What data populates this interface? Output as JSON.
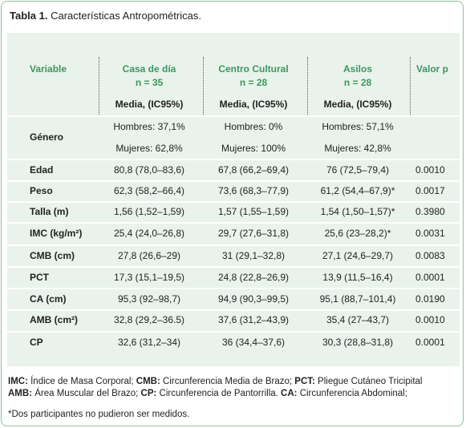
{
  "title": {
    "label": "Tabla 1.",
    "text": "Características Antropométricas."
  },
  "table": {
    "columns": [
      {
        "name": "Variable"
      },
      {
        "name": "Casa de día",
        "n": "n = 35",
        "sub": "Media, (IC95%)"
      },
      {
        "name": "Centro Cultural",
        "n": "n = 28",
        "sub": "Media, (IC95%)"
      },
      {
        "name": "Asilos",
        "n": "n = 28",
        "sub": "Media, (IC95%)"
      },
      {
        "name": "Valor p"
      }
    ],
    "rows": [
      {
        "label": "Género",
        "cells": [
          [
            "Hombres: 37,1%",
            "Mujeres: 62,8%"
          ],
          [
            "Hombres: 0%",
            "Mujeres: 100%"
          ],
          [
            "Hombres: 57,1%",
            "Mujeres: 42,8%"
          ]
        ]
      },
      {
        "label": "Edad",
        "cells": [
          "80,8 (78,0–83,6)",
          "67,8 (66,2–69,4)",
          "76 (72,5–79,4)",
          "0.0010"
        ]
      },
      {
        "label": "Peso",
        "cells": [
          "62,3 (58,2–66,4)",
          "73,6 (68,3–77,9)",
          "61,2 (54,4–67,9)*",
          "0.0017"
        ]
      },
      {
        "label": "Talla (m)",
        "cells": [
          "1,56 (1,52–1,59)",
          "1,57 (1,55–1,59)",
          "1,54 (1,50–1,57)*",
          "0.3980"
        ]
      },
      {
        "label": "IMC (kg/m²)",
        "cells": [
          "25,4 (24,0–26,8)",
          "29,7 (27,6–31,8)",
          "25,6 (23–28,2)*",
          "0.0031"
        ]
      },
      {
        "label": "CMB (cm)",
        "cells": [
          "27,8 (26,6–29)",
          "31 (29,1–32,8)",
          "27,1 (24,6–29,7)",
          "0.0083"
        ]
      },
      {
        "label": "PCT",
        "cells": [
          "17,3 (15,1–19,5)",
          "24,8 (22,8–26,9)",
          "13,9 (11,5–16,4)",
          "0.0001"
        ]
      },
      {
        "label": "CA (cm)",
        "cells": [
          "95,3 (92–98,7)",
          "94,9 (90,3–99,5)",
          "95,1 (88,7–101,4)",
          "0.0190"
        ]
      },
      {
        "label": "AMB (cm²)",
        "cells": [
          "32,8 (29,2–36.5)",
          "37,6 (31,2–43,9)",
          "35,4 (27–43,7)",
          "0.0010"
        ]
      },
      {
        "label": "CP",
        "cells": [
          "32,6 (31,2–34)",
          "36 (34,4–37,6)",
          "30,3 (28,8–31,8)",
          "0.0001"
        ]
      }
    ]
  },
  "footer": {
    "lines": [
      [
        {
          "bold": "IMC:",
          "text": " Índice de Masa Corporal; "
        },
        {
          "bold": "CMB:",
          "text": " Circunferencia Media de Brazo; "
        },
        {
          "bold": "PCT:",
          "text": " Pliegue Cutáneo Tricipital"
        }
      ],
      [
        {
          "bold": "AMB:",
          "text": " Área Muscular del Brazo; "
        },
        {
          "bold": "CP:",
          "text": " Circunferencia de Pantorrilla.  "
        },
        {
          "bold": "CA:",
          "text": " Circunferencia Abdominal;"
        }
      ]
    ],
    "note": "*Dos participantes no pudieron ser medidos."
  }
}
